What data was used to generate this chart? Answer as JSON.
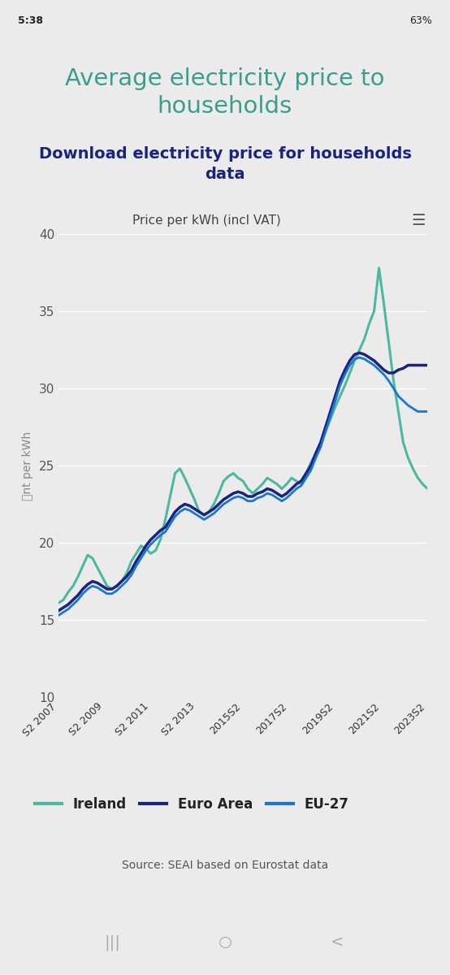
{
  "title": "Average electricity price to\nhouseholds",
  "subtitle": "Download electricity price for households\ndata",
  "chart_label": "Price per kWh (incl VAT)",
  "ylabel": "⃎nt per kWh",
  "source": "Source: SEAI based on Eurostat data",
  "title_color": "#3a9e8d",
  "subtitle_color": "#1a237e",
  "bg_color": "#ebebeb",
  "plot_bg_color": "#ebebeb",
  "ylim": [
    10,
    40
  ],
  "yticks": [
    10,
    15,
    20,
    25,
    30,
    35,
    40
  ],
  "xtick_labels": [
    "S2 2007",
    "S2 2009",
    "S2 2011",
    "S2 2013",
    "2015S2",
    "2017S2",
    "2019S2",
    "2021S2",
    "2023S2"
  ],
  "ireland_color": "#4db8a0",
  "euro_area_color": "#1a237e",
  "eu27_color": "#1976d2",
  "status_bar_color": "#f5f5f5",
  "nav_bar_color": "#1a1a1a",
  "ireland_data": [
    16.1,
    16.3,
    16.8,
    17.2,
    17.8,
    18.5,
    19.2,
    19.0,
    18.4,
    17.8,
    17.2,
    17.0,
    17.2,
    17.5,
    18.0,
    18.8,
    19.3,
    19.8,
    19.6,
    19.3,
    19.5,
    20.2,
    21.5,
    23.0,
    24.5,
    24.8,
    24.2,
    23.5,
    22.8,
    22.0,
    21.8,
    22.0,
    22.5,
    23.2,
    24.0,
    24.3,
    24.5,
    24.2,
    24.0,
    23.5,
    23.2,
    23.5,
    23.8,
    24.2,
    24.0,
    23.8,
    23.5,
    23.8,
    24.2,
    24.0,
    23.8,
    24.5,
    25.2,
    25.8,
    26.5,
    27.2,
    28.0,
    28.8,
    29.5,
    30.2,
    31.0,
    31.8,
    32.5,
    33.2,
    34.2,
    35.0,
    37.8,
    35.5,
    33.0,
    30.5,
    28.5,
    26.5,
    25.5,
    24.8,
    24.2,
    23.8,
    23.5
  ],
  "euro_area_data": [
    15.6,
    15.8,
    16.0,
    16.3,
    16.6,
    17.0,
    17.3,
    17.5,
    17.4,
    17.2,
    17.0,
    17.0,
    17.2,
    17.5,
    17.8,
    18.2,
    18.8,
    19.3,
    19.8,
    20.2,
    20.5,
    20.8,
    21.0,
    21.5,
    22.0,
    22.3,
    22.5,
    22.4,
    22.2,
    22.0,
    21.8,
    22.0,
    22.2,
    22.5,
    22.8,
    23.0,
    23.2,
    23.3,
    23.2,
    23.0,
    23.0,
    23.2,
    23.3,
    23.5,
    23.4,
    23.2,
    23.0,
    23.2,
    23.5,
    23.8,
    24.0,
    24.5,
    25.0,
    25.8,
    26.5,
    27.5,
    28.5,
    29.5,
    30.5,
    31.2,
    31.8,
    32.2,
    32.3,
    32.2,
    32.0,
    31.8,
    31.5,
    31.2,
    31.0,
    31.0,
    31.2,
    31.3,
    31.5,
    31.5,
    31.5,
    31.5,
    31.5
  ],
  "eu27_data": [
    15.3,
    15.5,
    15.7,
    16.0,
    16.3,
    16.7,
    17.0,
    17.2,
    17.1,
    16.9,
    16.7,
    16.7,
    16.9,
    17.2,
    17.5,
    17.9,
    18.5,
    19.0,
    19.5,
    19.9,
    20.2,
    20.5,
    20.7,
    21.2,
    21.7,
    22.0,
    22.2,
    22.1,
    21.9,
    21.7,
    21.5,
    21.7,
    21.9,
    22.2,
    22.5,
    22.7,
    22.9,
    23.0,
    22.9,
    22.7,
    22.7,
    22.9,
    23.0,
    23.2,
    23.1,
    22.9,
    22.7,
    22.9,
    23.2,
    23.5,
    23.7,
    24.2,
    24.7,
    25.5,
    26.2,
    27.2,
    28.2,
    29.2,
    30.2,
    30.9,
    31.5,
    31.9,
    32.0,
    31.9,
    31.7,
    31.5,
    31.2,
    30.9,
    30.5,
    30.0,
    29.5,
    29.2,
    28.9,
    28.7,
    28.5,
    28.5,
    28.5
  ]
}
